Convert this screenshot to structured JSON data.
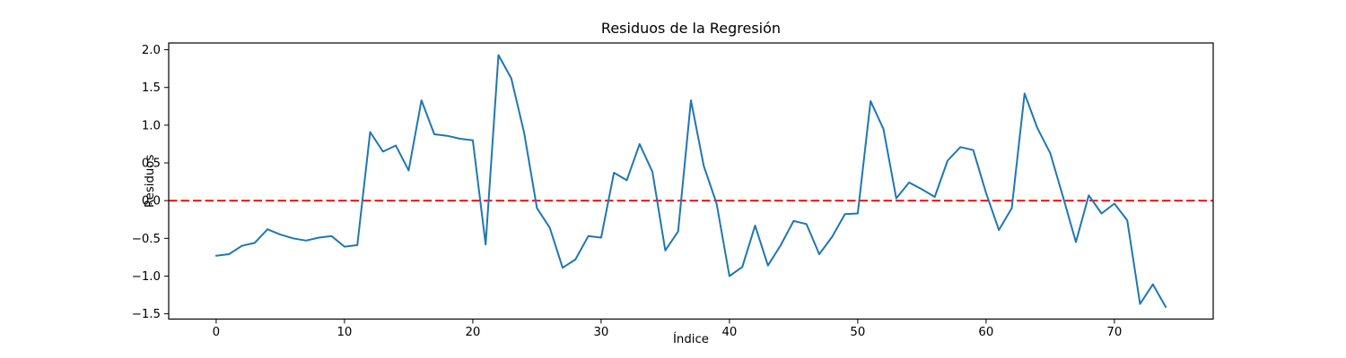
{
  "chart_data": {
    "type": "line",
    "title": "Residuos de la Regresión",
    "xlabel": "Índice",
    "ylabel": "Residuos",
    "grid": false,
    "legend": null,
    "xlim": [
      -3.7,
      77.7
    ],
    "ylim": [
      -1.57,
      2.09
    ],
    "x_ticks": [
      0,
      10,
      20,
      30,
      40,
      50,
      60,
      70
    ],
    "x_tick_labels": [
      "0",
      "10",
      "20",
      "30",
      "40",
      "50",
      "60",
      "70"
    ],
    "y_ticks": [
      2.0,
      1.5,
      1.0,
      0.5,
      0.0,
      -0.5,
      -1.0,
      -1.5
    ],
    "y_tick_labels": [
      "2.0",
      "1.5",
      "1.0",
      "0.5",
      "0.0",
      "−0.5",
      "−1.0",
      "−1.5"
    ],
    "reference_line": {
      "y": 0.0,
      "color": "#ff0000",
      "style": "dashed"
    },
    "series": [
      {
        "name": "residuos",
        "color": "#1f77b4",
        "x_is_index": true,
        "values": [
          -0.73,
          -0.71,
          -0.6,
          -0.56,
          -0.38,
          -0.45,
          -0.5,
          -0.53,
          -0.49,
          -0.47,
          -0.61,
          -0.59,
          0.91,
          0.65,
          0.73,
          0.4,
          1.33,
          0.88,
          0.86,
          0.82,
          0.8,
          -0.58,
          1.93,
          1.62,
          0.9,
          -0.1,
          -0.36,
          -0.89,
          -0.78,
          -0.47,
          -0.49,
          0.37,
          0.27,
          0.75,
          0.38,
          -0.66,
          -0.41,
          1.33,
          0.46,
          -0.04,
          -1.0,
          -0.88,
          -0.33,
          -0.86,
          -0.59,
          -0.27,
          -0.31,
          -0.71,
          -0.48,
          -0.18,
          -0.17,
          1.32,
          0.95,
          0.03,
          0.24,
          0.15,
          0.05,
          0.53,
          0.71,
          0.67,
          0.1,
          -0.39,
          -0.1,
          1.42,
          0.96,
          0.63,
          0.05,
          -0.55,
          0.07,
          -0.17,
          -0.04,
          -0.26,
          -1.37,
          -1.11,
          -1.41
        ]
      }
    ],
    "colors": {
      "line": "#1f77b4",
      "reference": "#ff0000",
      "spine": "#000000",
      "background": "#ffffff"
    }
  }
}
